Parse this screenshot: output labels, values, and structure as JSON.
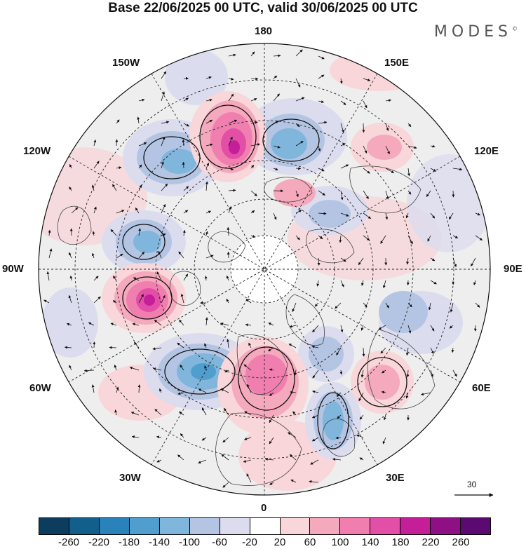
{
  "title": "Base 22/06/2025 00 UTC, valid 30/06/2025 00 UTC",
  "brand": "MODES",
  "brand_mark": "©",
  "longitude_labels": {
    "n180": "180",
    "w150": "150W",
    "e150": "150E",
    "w120": "120W",
    "e120": "120E",
    "w90": "90W",
    "e90": "90E",
    "w60": "60W",
    "e60": "60E",
    "w30": "30W",
    "e30": "30E",
    "s0": "0"
  },
  "reference_vector_label": "30",
  "colorbar": {
    "colors": [
      "#0d3d5e",
      "#135f8c",
      "#2a82ba",
      "#4f9ecd",
      "#80b5dc",
      "#b4c5e3",
      "#dcdcef",
      "#ffffff",
      "#f8d6d9",
      "#f5a9bd",
      "#f07fb0",
      "#e34fa7",
      "#c41e99",
      "#8f0f84",
      "#5a0a70"
    ],
    "tick_labels": [
      "-260",
      "-220",
      "-180",
      "-140",
      "-100",
      "-60",
      "-20",
      "20",
      "60",
      "100",
      "140",
      "180",
      "220",
      "260"
    ]
  }
}
